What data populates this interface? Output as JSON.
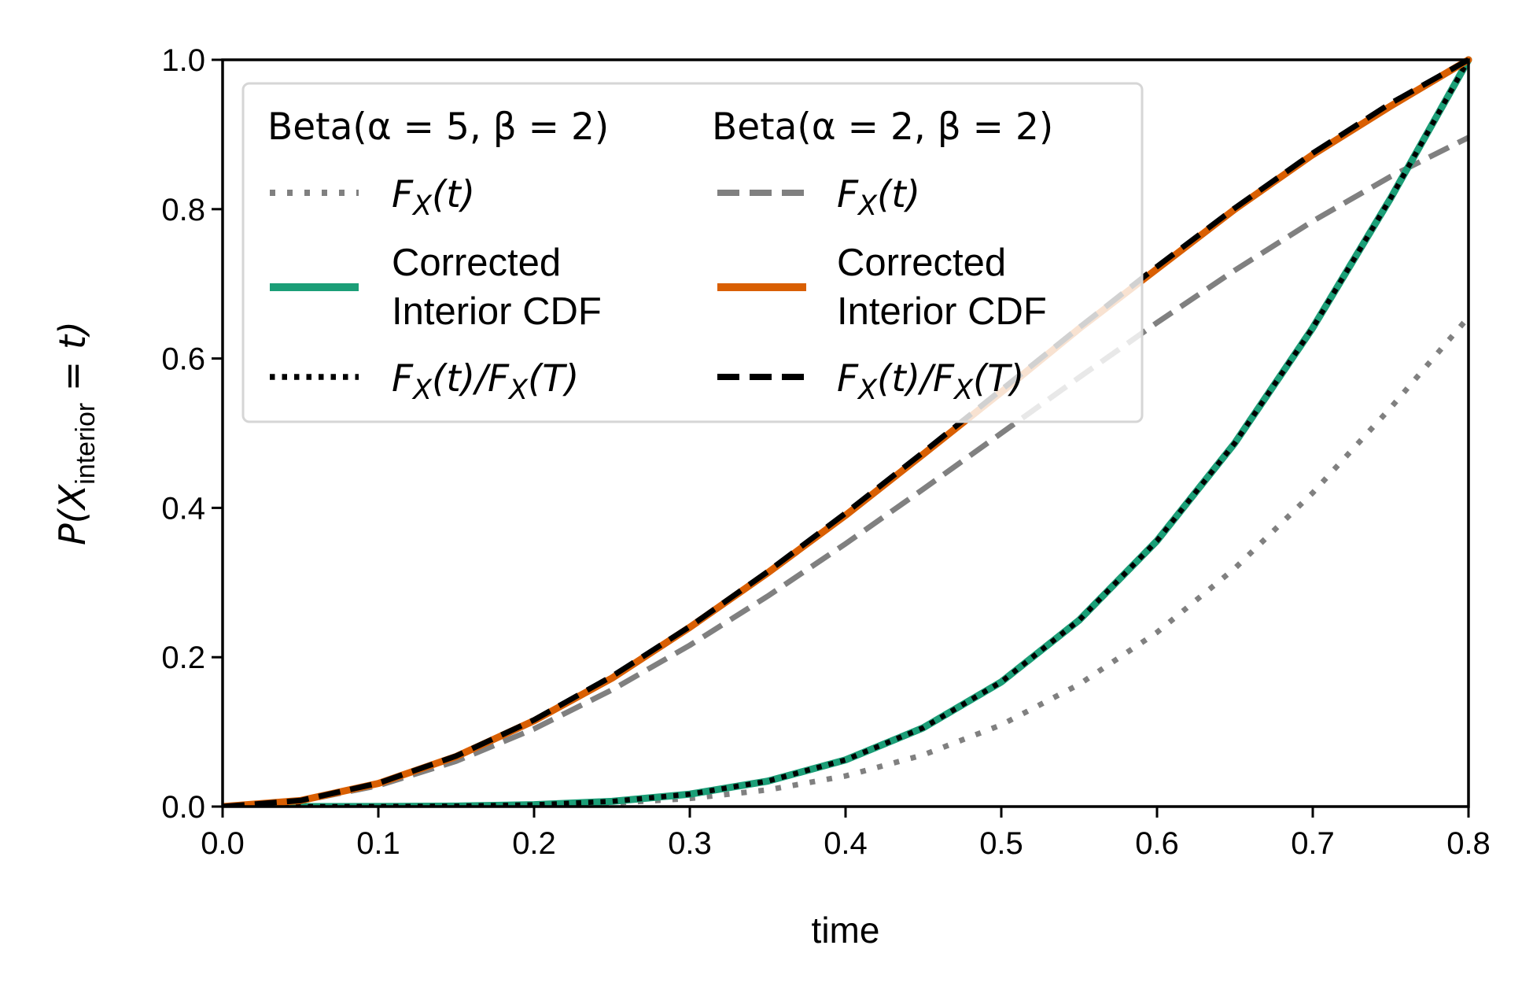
{
  "chart_data": {
    "type": "line",
    "xlabel": "time",
    "ylabel_parts": {
      "pre": "P(X",
      "sub": "interior",
      "post": " = t)"
    },
    "xlim": [
      0.0,
      0.8
    ],
    "ylim": [
      0.0,
      1.0
    ],
    "xticks": [
      "0.0",
      "0.1",
      "0.2",
      "0.3",
      "0.4",
      "0.5",
      "0.6",
      "0.7",
      "0.8"
    ],
    "yticks": [
      "0.0",
      "0.2",
      "0.4",
      "0.6",
      "0.8",
      "1.0"
    ],
    "grid": false,
    "legend": {
      "placement": "upper-left",
      "columns": [
        {
          "title": "Beta(α = 5, β = 2)",
          "entries": [
            {
              "label": "F_X(t)",
              "text_pre": "F",
              "text_sub": "X",
              "text_post": "(t)"
            },
            {
              "label_lines": [
                "Corrected",
                "Interior CDF"
              ]
            },
            {
              "label": "F_X(t)/F_X(T)",
              "text_pre": "F",
              "text_sub": "X",
              "text_post": "(t)/F",
              "text_sub2": "X",
              "text_post2": "(T)"
            }
          ]
        },
        {
          "title": "Beta(α = 2, β = 2)",
          "entries": [
            {
              "label": "F_X(t)",
              "text_pre": "F",
              "text_sub": "X",
              "text_post": "(t)"
            },
            {
              "label_lines": [
                "Corrected",
                "Interior CDF"
              ]
            },
            {
              "label": "F_X(t)/F_X(T)",
              "text_pre": "F",
              "text_sub": "X",
              "text_post": "(t)/F",
              "text_sub2": "X",
              "text_post2": "(T)"
            }
          ]
        }
      ]
    },
    "colors": {
      "teal": "#1b9e77",
      "orange": "#d95f02",
      "gray": "#808080",
      "black": "#000000"
    },
    "series": [
      {
        "id": "b52-fx",
        "style": "gray-dotted",
        "x": [
          0.0,
          0.05,
          0.1,
          0.15,
          0.2,
          0.25,
          0.3,
          0.35,
          0.4,
          0.45,
          0.5,
          0.55,
          0.6,
          0.65,
          0.7,
          0.75,
          0.8
        ],
        "y": [
          0.0,
          1.8e-06,
          5.5e-05,
          0.0004,
          0.0016,
          0.0046,
          0.0109,
          0.0223,
          0.041,
          0.0692,
          0.1094,
          0.1636,
          0.2333,
          0.3191,
          0.4202,
          0.5339,
          0.6554
        ]
      },
      {
        "id": "b22-fx",
        "style": "gray-dashed",
        "x": [
          0.0,
          0.05,
          0.1,
          0.15,
          0.2,
          0.25,
          0.3,
          0.35,
          0.4,
          0.45,
          0.5,
          0.55,
          0.6,
          0.65,
          0.7,
          0.75,
          0.8
        ],
        "y": [
          0.0,
          0.00725,
          0.028,
          0.06075,
          0.104,
          0.15625,
          0.216,
          0.28175,
          0.352,
          0.42525,
          0.5,
          0.57475,
          0.648,
          0.71825,
          0.784,
          0.84375,
          0.896
        ]
      },
      {
        "id": "b52-corrected",
        "style": "teal-solid",
        "x": [
          0.0,
          0.05,
          0.1,
          0.15,
          0.2,
          0.25,
          0.3,
          0.35,
          0.4,
          0.45,
          0.5,
          0.55,
          0.6,
          0.65,
          0.7,
          0.75,
          0.8
        ],
        "y": [
          0.0,
          0.0,
          0.0001,
          0.0006,
          0.0025,
          0.007,
          0.0166,
          0.034,
          0.0625,
          0.1056,
          0.1669,
          0.2496,
          0.356,
          0.4869,
          0.6411,
          0.8146,
          1.0
        ]
      },
      {
        "id": "b52-ratio",
        "style": "black-dotted",
        "x": [
          0.0,
          0.05,
          0.1,
          0.15,
          0.2,
          0.25,
          0.3,
          0.35,
          0.4,
          0.45,
          0.5,
          0.55,
          0.6,
          0.65,
          0.7,
          0.75,
          0.8
        ],
        "y": [
          0.0,
          2.7e-06,
          8.4e-05,
          0.0006,
          0.0024,
          0.007,
          0.0166,
          0.034,
          0.0625,
          0.1056,
          0.1669,
          0.2496,
          0.356,
          0.4869,
          0.6411,
          0.8146,
          1.0
        ]
      },
      {
        "id": "b22-corrected",
        "style": "orange-solid",
        "x": [
          0.0,
          0.05,
          0.1,
          0.15,
          0.2,
          0.25,
          0.3,
          0.35,
          0.4,
          0.45,
          0.5,
          0.55,
          0.6,
          0.65,
          0.7,
          0.75,
          0.8
        ],
        "y": [
          0.0,
          0.008,
          0.031,
          0.067,
          0.115,
          0.172,
          0.24,
          0.313,
          0.39,
          0.472,
          0.555,
          0.64,
          0.72,
          0.8,
          0.873,
          0.938,
          1.0
        ]
      },
      {
        "id": "b22-ratio",
        "style": "black-dashed",
        "x": [
          0.0,
          0.05,
          0.1,
          0.15,
          0.2,
          0.25,
          0.3,
          0.35,
          0.4,
          0.45,
          0.5,
          0.55,
          0.6,
          0.65,
          0.7,
          0.75,
          0.8
        ],
        "y": [
          0.0,
          0.0081,
          0.03125,
          0.0678,
          0.1161,
          0.1744,
          0.2411,
          0.3145,
          0.3929,
          0.4746,
          0.558,
          0.6415,
          0.7232,
          0.8016,
          0.875,
          0.9417,
          1.0
        ]
      }
    ]
  }
}
